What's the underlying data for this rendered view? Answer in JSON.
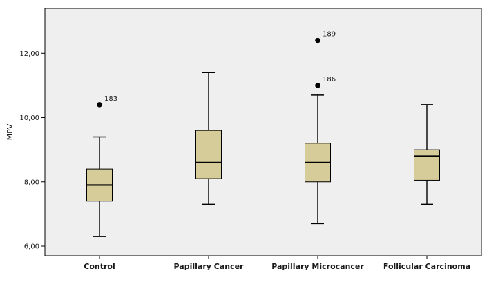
{
  "chart_data": {
    "type": "boxplot",
    "xlabel": "",
    "ylabel": "MPV",
    "ylim": [
      5.7,
      13.4
    ],
    "yticks": [
      6,
      8,
      10,
      12
    ],
    "ytick_labels": [
      "6,00",
      "8,00",
      "10,00",
      "12,00"
    ],
    "grid": false,
    "colors": {
      "box_fill": "#d6cc99",
      "plot_bg": "#efefef",
      "stroke": "#000000"
    },
    "categories": [
      "Control",
      "Papillary Cancer",
      "Papillary Microcancer",
      "Follicular Carcinoma"
    ],
    "boxes": [
      {
        "category": "Control",
        "whisker_low": 6.3,
        "q1": 7.4,
        "median": 7.9,
        "q3": 8.4,
        "whisker_high": 9.4,
        "outliers": [
          {
            "value": 10.4,
            "label": "183"
          }
        ]
      },
      {
        "category": "Papillary Cancer",
        "whisker_low": 7.3,
        "q1": 8.1,
        "median": 8.6,
        "q3": 9.6,
        "whisker_high": 11.4,
        "outliers": []
      },
      {
        "category": "Papillary Microcancer",
        "whisker_low": 6.7,
        "q1": 8.0,
        "median": 8.6,
        "q3": 9.2,
        "whisker_high": 10.7,
        "outliers": [
          {
            "value": 12.4,
            "label": "189"
          },
          {
            "value": 11.0,
            "label": "186"
          }
        ]
      },
      {
        "category": "Follicular Carcinoma",
        "whisker_low": 7.3,
        "q1": 8.05,
        "median": 8.8,
        "q3": 9.0,
        "whisker_high": 10.4,
        "outliers": []
      }
    ]
  }
}
